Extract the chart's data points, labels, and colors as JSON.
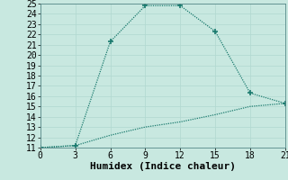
{
  "xlabel": "Humidex (Indice chaleur)",
  "line1_x": [
    0,
    3,
    6,
    9,
    12,
    15,
    18,
    21
  ],
  "line1_y": [
    11,
    11.2,
    21.3,
    24.8,
    24.8,
    22.3,
    16.3,
    15.3
  ],
  "line2_x": [
    0,
    3,
    6,
    9,
    12,
    15,
    18,
    21
  ],
  "line2_y": [
    11,
    11.2,
    12.2,
    13.0,
    13.5,
    14.2,
    15.0,
    15.3
  ],
  "line_color": "#1a7a6e",
  "bg_color": "#c8e8e0",
  "grid_color_major": "#b0d8d0",
  "grid_color_minor": "#d4ecea",
  "xlim": [
    0,
    21
  ],
  "ylim": [
    11,
    25
  ],
  "xticks": [
    0,
    3,
    6,
    9,
    12,
    15,
    18,
    21
  ],
  "yticks": [
    11,
    12,
    13,
    14,
    15,
    16,
    17,
    18,
    19,
    20,
    21,
    22,
    23,
    24,
    25
  ],
  "xlabel_fontsize": 8,
  "tick_fontsize": 7
}
